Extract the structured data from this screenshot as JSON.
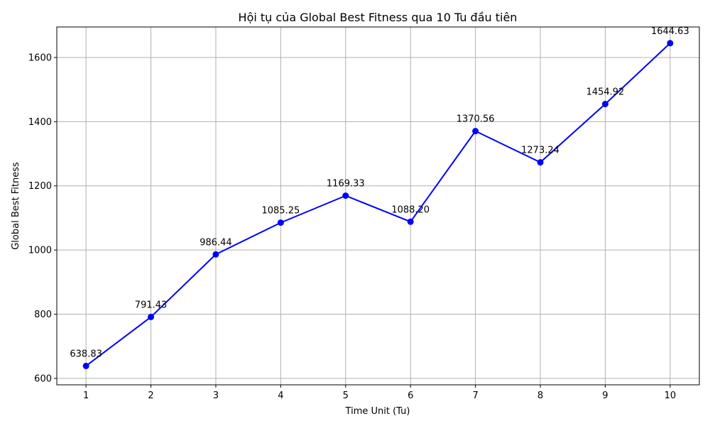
{
  "chart_data": {
    "type": "line",
    "title": "Hội tụ của Global Best Fitness qua 10 Tu đầu tiên",
    "xlabel": "Time Unit (Tu)",
    "ylabel": "Global Best Fitness",
    "x": [
      1,
      2,
      3,
      4,
      5,
      6,
      7,
      8,
      9,
      10
    ],
    "xlim": [
      0.55,
      10.45
    ],
    "ylim": [
      580,
      1695
    ],
    "xticks": [
      1,
      2,
      3,
      4,
      5,
      6,
      7,
      8,
      9,
      10
    ],
    "yticks": [
      600,
      800,
      1000,
      1200,
      1400,
      1600
    ],
    "grid": true,
    "series": [
      {
        "values": [
          638.83,
          791.43,
          986.44,
          1085.25,
          1169.33,
          1088.2,
          1370.56,
          1273.24,
          1454.92,
          1644.63
        ],
        "labels": [
          "638.83",
          "791.43",
          "986.44",
          "1085.25",
          "1169.33",
          "1088.20",
          "1370.56",
          "1273.24",
          "1454.92",
          "1644.63"
        ],
        "color": "#0000ff",
        "marker": "circle"
      }
    ]
  }
}
